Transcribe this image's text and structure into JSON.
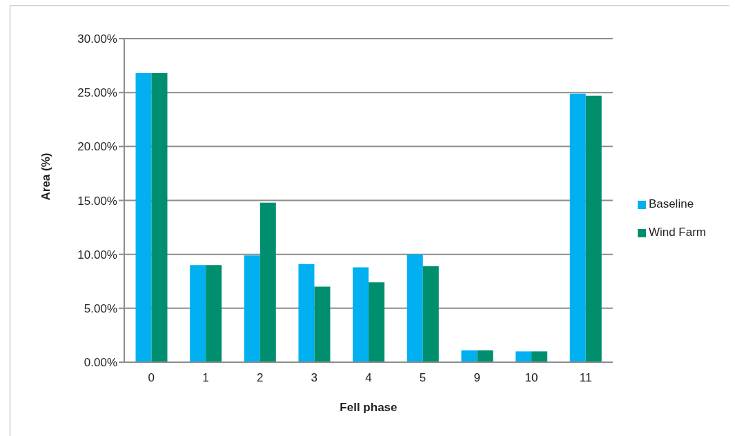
{
  "chart_data": {
    "type": "bar",
    "xlabel": "Fell phase",
    "ylabel": "Area (%)",
    "categories": [
      "0",
      "1",
      "2",
      "3",
      "4",
      "5",
      "9",
      "10",
      "11"
    ],
    "series": [
      {
        "name": "Baseline",
        "color": "#00b0f0",
        "values": [
          26.8,
          9.0,
          9.9,
          9.1,
          8.8,
          10.0,
          1.1,
          1.0,
          24.9
        ]
      },
      {
        "name": "Wind Farm",
        "color": "#008f6e",
        "values": [
          26.8,
          9.0,
          14.8,
          7.0,
          7.4,
          8.9,
          1.1,
          1.0,
          24.7
        ]
      }
    ],
    "ylim": [
      0,
      30
    ],
    "yticks": [
      {
        "value": 0,
        "label": "0.00%"
      },
      {
        "value": 5,
        "label": "5.00%"
      },
      {
        "value": 10,
        "label": "10.00%"
      },
      {
        "value": 15,
        "label": "15.00%"
      },
      {
        "value": 20,
        "label": "20.00%"
      },
      {
        "value": 25,
        "label": "25.00%"
      },
      {
        "value": 30,
        "label": "30.00%"
      }
    ],
    "grid": "y",
    "legend": "right"
  }
}
